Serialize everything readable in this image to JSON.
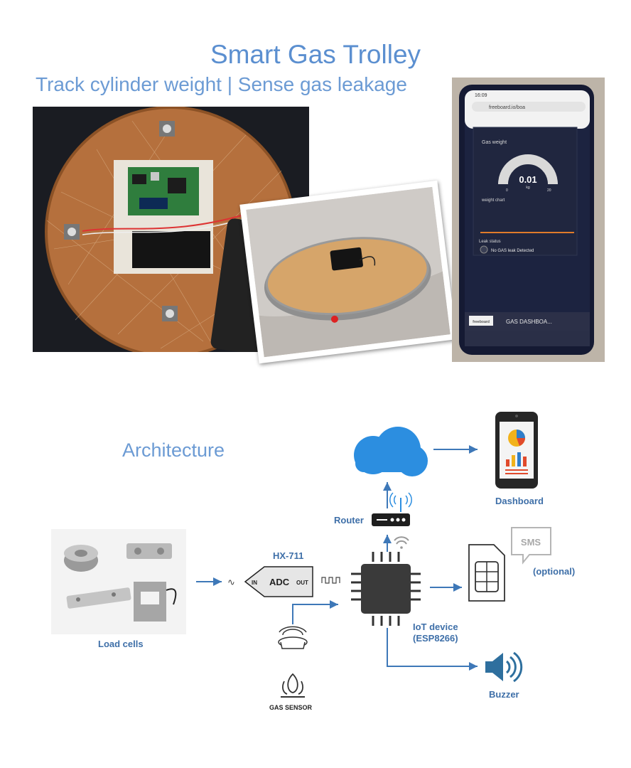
{
  "header": {
    "title": "Smart Gas Trolley",
    "subtitle": "Track cylinder weight | Sense gas leakage"
  },
  "phone_screen": {
    "status_time": "16:09",
    "url": "freeboard.io/boa",
    "gas_weight_label": "Gas weight",
    "gauge_value": "0.01",
    "gauge_unit": "kg",
    "gauge_min": "0",
    "gauge_max": "20",
    "chart_label": "weight chart",
    "leak_status_label": "Leak status",
    "leak_status_text": "No GAS leak Detected",
    "brand": "freeboard",
    "dashboard_title": "GAS DASHBOA..."
  },
  "architecture": {
    "heading": "Architecture",
    "labels": {
      "dashboard": "Dashboard",
      "router": "Router",
      "hx711": "HX-711",
      "adc": "ADC",
      "adc_in": "IN",
      "adc_out": "OUT",
      "load_cells": "Load cells",
      "gas_sensor": "GAS SENSOR",
      "iot_device_line1": "IoT device",
      "iot_device_line2": "(ESP8266)",
      "sms": "SMS",
      "optional": "(optional)",
      "buzzer": "Buzzer"
    }
  },
  "colors": {
    "title": "#5b8fd0",
    "label": "#3e6fa8",
    "arrow": "#3e78b8",
    "cloud": "#2c8ee0",
    "chip": "#3a3a3a",
    "wood": "#b5703d",
    "phone_screen": "#1c2340"
  }
}
